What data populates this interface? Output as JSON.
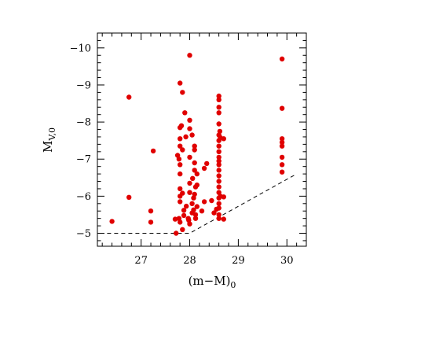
{
  "chart_data": {
    "type": "scatter",
    "xlabel": "(m−M)",
    "xlabel_sub": "0",
    "ylabel": "M",
    "ylabel_sub": "V,0",
    "xlim": [
      26.1,
      30.4
    ],
    "ylim": [
      -4.65,
      -10.4
    ],
    "y_inverted": true,
    "grid": false,
    "point_color": "#e00000",
    "x_major_ticks": [
      27,
      28,
      29,
      30
    ],
    "x_tick_labels": [
      "27",
      "28",
      "29",
      "30"
    ],
    "x_minor_step": 0.2,
    "y_major_ticks": [
      -5,
      -6,
      -7,
      -8,
      -9,
      -10
    ],
    "y_tick_labels": [
      "−5",
      "−6",
      "−7",
      "−8",
      "−9",
      "−10"
    ],
    "y_minor_step": 0.2,
    "limit_line": [
      [
        26.3,
        -5.0
      ],
      [
        28.0,
        -5.0
      ],
      [
        30.2,
        -6.6
      ]
    ],
    "points": [
      [
        26.4,
        -5.32
      ],
      [
        26.75,
        -8.67
      ],
      [
        26.75,
        -5.97
      ],
      [
        27.2,
        -5.6
      ],
      [
        27.2,
        -5.3
      ],
      [
        27.25,
        -7.22
      ],
      [
        27.7,
        -5.38
      ],
      [
        27.72,
        -5.0
      ],
      [
        27.75,
        -7.1
      ],
      [
        27.78,
        -7.0
      ],
      [
        27.78,
        -5.4
      ],
      [
        27.8,
        -9.05
      ],
      [
        27.8,
        -7.85
      ],
      [
        27.8,
        -7.55
      ],
      [
        27.8,
        -7.35
      ],
      [
        27.8,
        -6.85
      ],
      [
        27.8,
        -6.6
      ],
      [
        27.8,
        -6.2
      ],
      [
        27.8,
        -6.0
      ],
      [
        27.8,
        -5.85
      ],
      [
        27.8,
        -5.3
      ],
      [
        27.83,
        -7.9
      ],
      [
        27.85,
        -8.8
      ],
      [
        27.85,
        -7.25
      ],
      [
        27.85,
        -6.08
      ],
      [
        27.85,
        -5.1
      ],
      [
        27.88,
        -5.48
      ],
      [
        27.88,
        -5.62
      ],
      [
        27.9,
        -8.25
      ],
      [
        27.92,
        -7.6
      ],
      [
        27.93,
        -5.73
      ],
      [
        27.97,
        -5.4
      ],
      [
        27.98,
        -5.35
      ],
      [
        28.0,
        -9.8
      ],
      [
        28.0,
        -8.05
      ],
      [
        28.0,
        -7.82
      ],
      [
        28.0,
        -7.05
      ],
      [
        28.0,
        -6.35
      ],
      [
        28.0,
        -6.1
      ],
      [
        28.0,
        -5.25
      ],
      [
        28.05,
        -7.65
      ],
      [
        28.05,
        -5.8
      ],
      [
        28.05,
        -5.55
      ],
      [
        28.06,
        -6.48
      ],
      [
        28.08,
        -5.95
      ],
      [
        28.08,
        -5.63
      ],
      [
        28.1,
        -7.35
      ],
      [
        28.1,
        -7.25
      ],
      [
        28.1,
        -6.9
      ],
      [
        28.1,
        -6.7
      ],
      [
        28.1,
        -6.05
      ],
      [
        28.12,
        -5.4
      ],
      [
        28.12,
        -5.5
      ],
      [
        28.12,
        -6.25
      ],
      [
        28.15,
        -6.6
      ],
      [
        28.15,
        -6.3
      ],
      [
        28.15,
        -5.72
      ],
      [
        28.25,
        -5.6
      ],
      [
        28.3,
        -6.75
      ],
      [
        28.3,
        -5.85
      ],
      [
        28.35,
        -6.88
      ],
      [
        28.45,
        -5.88
      ],
      [
        28.5,
        -5.55
      ],
      [
        28.55,
        -5.65
      ],
      [
        28.6,
        -8.7
      ],
      [
        28.6,
        -8.6
      ],
      [
        28.6,
        -8.4
      ],
      [
        28.6,
        -8.25
      ],
      [
        28.6,
        -7.95
      ],
      [
        28.6,
        -7.65
      ],
      [
        28.6,
        -7.5
      ],
      [
        28.6,
        -7.35
      ],
      [
        28.6,
        -7.2
      ],
      [
        28.6,
        -7.05
      ],
      [
        28.6,
        -6.95
      ],
      [
        28.6,
        -6.85
      ],
      [
        28.6,
        -6.7
      ],
      [
        28.6,
        -6.55
      ],
      [
        28.6,
        -6.4
      ],
      [
        28.6,
        -6.25
      ],
      [
        28.6,
        -6.1
      ],
      [
        28.6,
        -5.95
      ],
      [
        28.6,
        -5.8
      ],
      [
        28.6,
        -5.68
      ],
      [
        28.6,
        -5.5
      ],
      [
        28.6,
        -5.4
      ],
      [
        28.62,
        -7.75
      ],
      [
        28.63,
        -7.58
      ],
      [
        28.63,
        -6.0
      ],
      [
        28.7,
        -7.55
      ],
      [
        28.7,
        -5.98
      ],
      [
        28.7,
        -5.38
      ],
      [
        29.9,
        -9.7
      ],
      [
        29.9,
        -8.37
      ],
      [
        29.9,
        -7.55
      ],
      [
        29.9,
        -7.45
      ],
      [
        29.9,
        -7.35
      ],
      [
        29.9,
        -7.05
      ],
      [
        29.9,
        -6.85
      ],
      [
        29.9,
        -6.65
      ]
    ]
  }
}
